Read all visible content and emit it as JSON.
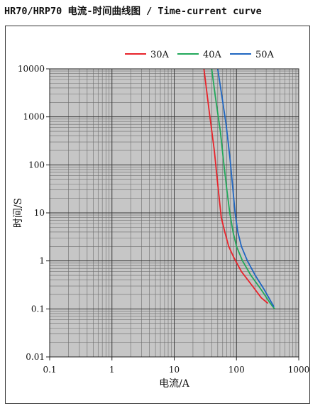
{
  "header": {
    "title": "HR70/HRP70 电流-时间曲线图 / Time-current curve"
  },
  "chart_data": {
    "type": "line",
    "title": "HR70/HRP70 电流-时间曲线图 / Time-current curve",
    "xlabel": "电流/A",
    "ylabel": "时间/S",
    "xscale": "log",
    "yscale": "log",
    "xlim": [
      0.1,
      1000
    ],
    "ylim": [
      0.01,
      10000
    ],
    "x_ticks": [
      0.1,
      1,
      10,
      100,
      1000
    ],
    "x_tick_labels": [
      "0.1",
      "1",
      "10",
      "100",
      "1000"
    ],
    "y_ticks": [
      0.01,
      0.1,
      1,
      10,
      100,
      1000,
      10000
    ],
    "y_tick_labels": [
      "0.01",
      "0.1",
      "1",
      "10",
      "100",
      "1000",
      "10000"
    ],
    "grid": true,
    "legend": "top",
    "series": [
      {
        "name": "30A",
        "color": "#e8232a",
        "points": [
          [
            30,
            10000
          ],
          [
            36,
            1500
          ],
          [
            44,
            200
          ],
          [
            50,
            40
          ],
          [
            57,
            8
          ],
          [
            65,
            4
          ],
          [
            75,
            2
          ],
          [
            90,
            1.2
          ],
          [
            120,
            0.6
          ],
          [
            180,
            0.3
          ],
          [
            250,
            0.17
          ],
          [
            320,
            0.13
          ]
        ]
      },
      {
        "name": "40A",
        "color": "#22a85a",
        "points": [
          [
            40,
            10000
          ],
          [
            46,
            2500
          ],
          [
            55,
            500
          ],
          [
            63,
            100
          ],
          [
            70,
            30
          ],
          [
            78,
            10
          ],
          [
            88,
            4
          ],
          [
            100,
            2
          ],
          [
            125,
            1
          ],
          [
            170,
            0.5
          ],
          [
            250,
            0.25
          ],
          [
            350,
            0.13
          ],
          [
            410,
            0.1
          ]
        ]
      },
      {
        "name": "50A",
        "color": "#1f66c1",
        "points": [
          [
            50,
            10000
          ],
          [
            58,
            2800
          ],
          [
            68,
            700
          ],
          [
            78,
            150
          ],
          [
            86,
            40
          ],
          [
            95,
            10
          ],
          [
            105,
            4
          ],
          [
            120,
            2
          ],
          [
            150,
            1
          ],
          [
            200,
            0.5
          ],
          [
            280,
            0.25
          ],
          [
            360,
            0.14
          ],
          [
            400,
            0.11
          ]
        ]
      }
    ]
  }
}
